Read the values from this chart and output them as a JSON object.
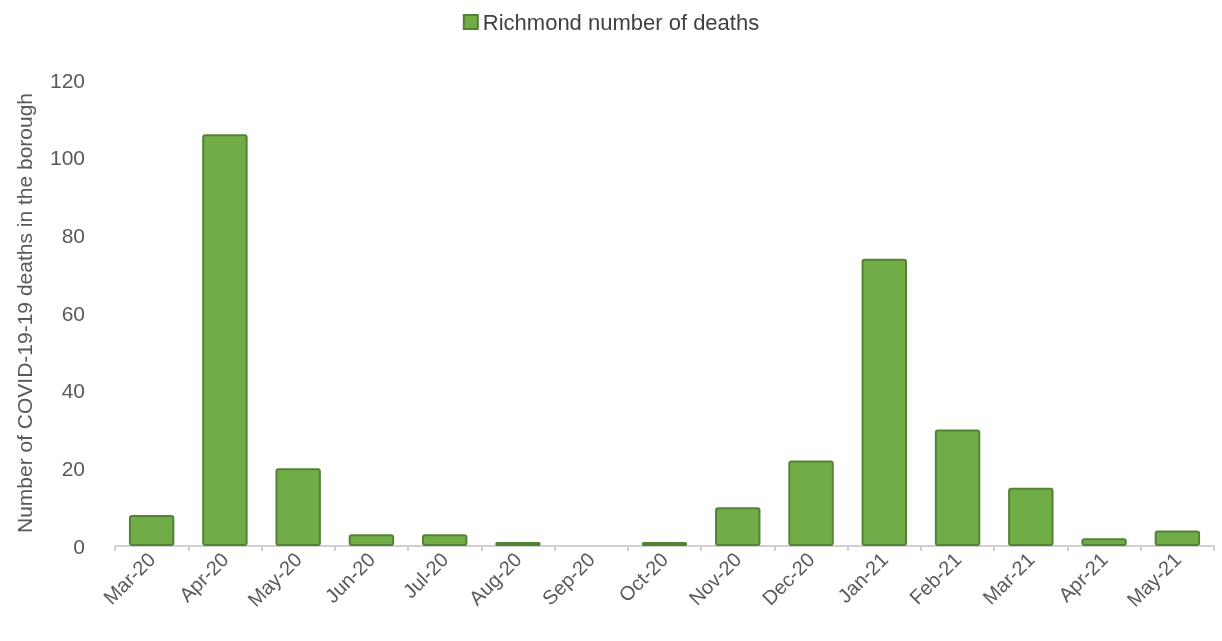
{
  "chart_data": {
    "type": "bar",
    "ylabel": "Number of COVID-19-19 deaths in the borough",
    "categories": [
      "Mar-20",
      "Apr-20",
      "May-20",
      "Jun-20",
      "Jul-20",
      "Aug-20",
      "Sep-20",
      "Oct-20",
      "Nov-20",
      "Dec-20",
      "Jan-21",
      "Feb-21",
      "Mar-21",
      "Apr-21",
      "May-21"
    ],
    "series": [
      {
        "name": "Richmond number of deaths",
        "color": "#70ad47",
        "values": [
          8,
          106,
          20,
          3,
          3,
          1,
          0,
          1,
          10,
          22,
          74,
          30,
          15,
          2,
          4
        ]
      }
    ],
    "ylim": [
      0,
      120
    ],
    "yticks": [
      0,
      20,
      40,
      60,
      80,
      100,
      120
    ],
    "grid": false,
    "legend": "top"
  }
}
